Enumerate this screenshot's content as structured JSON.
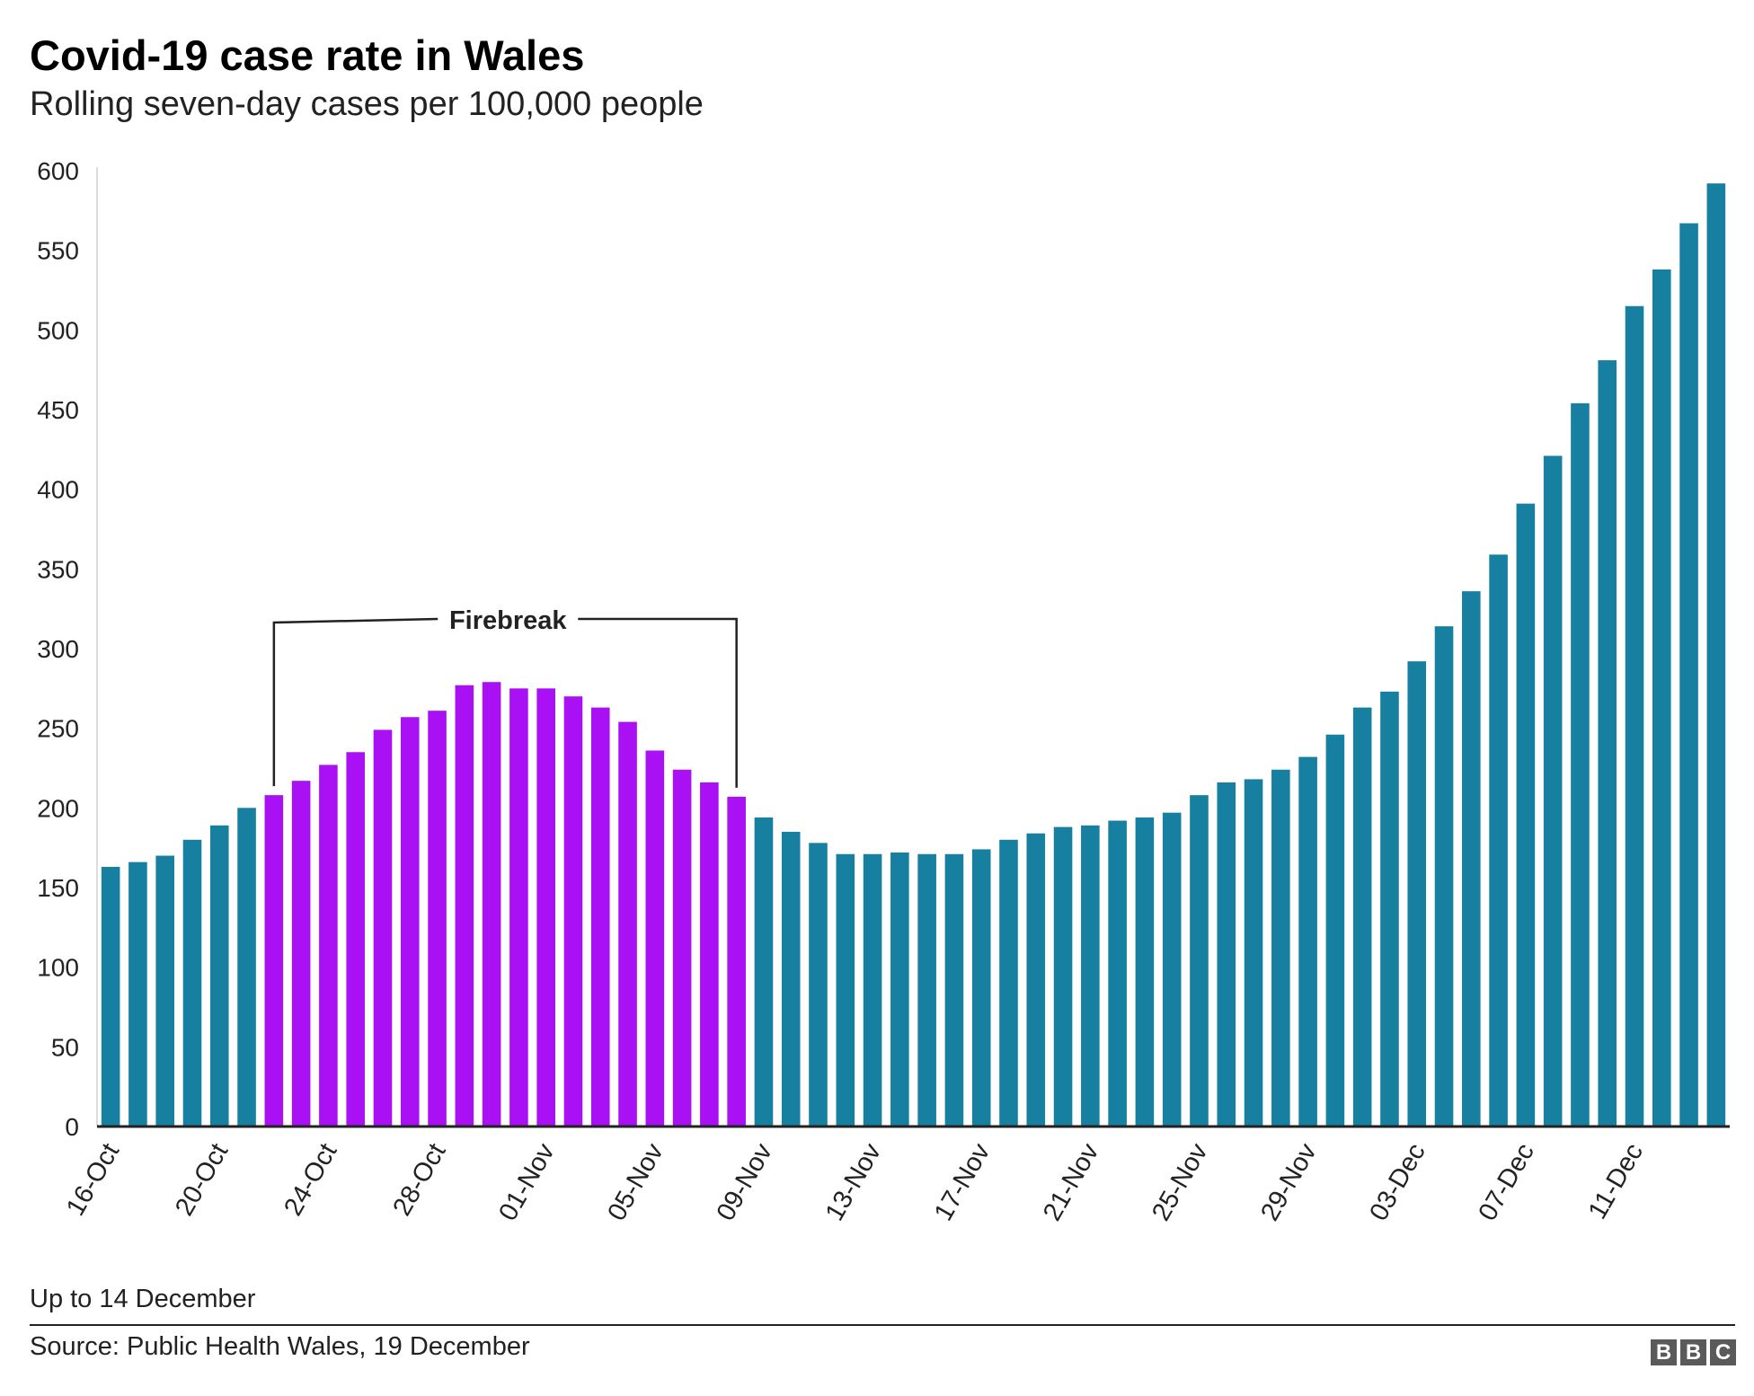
{
  "header": {
    "title": "Covid-19 case rate in Wales",
    "subtitle": "Rolling seven-day cases per 100,000 people"
  },
  "footer": {
    "note": "Up to 14 December",
    "source": "Source: Public Health Wales, 19 December",
    "logo_letters": [
      "B",
      "B",
      "C"
    ]
  },
  "colors": {
    "default_bar": "#1780a1",
    "highlight_bar": "#aa10f4",
    "axis": "#222222",
    "logo": "#5a5a5a"
  },
  "chart_data": {
    "type": "bar",
    "title": "Covid-19 case rate in Wales",
    "subtitle": "Rolling seven-day cases per 100,000 people",
    "xlabel": "",
    "ylabel": "",
    "ylim": [
      0,
      600
    ],
    "yticks": [
      0,
      50,
      100,
      150,
      200,
      250,
      300,
      350,
      400,
      450,
      500,
      550,
      600
    ],
    "grid": false,
    "categories": [
      "16-Oct",
      "17-Oct",
      "18-Oct",
      "19-Oct",
      "20-Oct",
      "21-Oct",
      "22-Oct",
      "23-Oct",
      "24-Oct",
      "25-Oct",
      "26-Oct",
      "27-Oct",
      "28-Oct",
      "29-Oct",
      "30-Oct",
      "31-Oct",
      "01-Nov",
      "02-Nov",
      "03-Nov",
      "04-Nov",
      "05-Nov",
      "06-Nov",
      "07-Nov",
      "08-Nov",
      "09-Nov",
      "10-Nov",
      "11-Nov",
      "12-Nov",
      "13-Nov",
      "14-Nov",
      "15-Nov",
      "16-Nov",
      "17-Nov",
      "18-Nov",
      "19-Nov",
      "20-Nov",
      "21-Nov",
      "22-Nov",
      "23-Nov",
      "24-Nov",
      "25-Nov",
      "26-Nov",
      "27-Nov",
      "28-Nov",
      "29-Nov",
      "30-Nov",
      "01-Dec",
      "02-Dec",
      "03-Dec",
      "04-Dec",
      "05-Dec",
      "06-Dec",
      "07-Dec",
      "08-Dec",
      "09-Dec",
      "10-Dec",
      "11-Dec",
      "12-Dec",
      "13-Dec",
      "14-Dec"
    ],
    "tick_labels": [
      "16-Oct",
      "20-Oct",
      "24-Oct",
      "28-Oct",
      "01-Nov",
      "05-Nov",
      "09-Nov",
      "13-Nov",
      "17-Nov",
      "21-Nov",
      "25-Nov",
      "29-Nov",
      "03-Dec",
      "07-Dec",
      "11-Dec"
    ],
    "values": [
      163,
      166,
      170,
      180,
      189,
      200,
      208,
      217,
      227,
      235,
      249,
      257,
      261,
      277,
      279,
      275,
      275,
      270,
      263,
      254,
      236,
      224,
      216,
      207,
      194,
      185,
      178,
      171,
      171,
      172,
      171,
      171,
      174,
      180,
      184,
      188,
      189,
      192,
      194,
      197,
      208,
      216,
      218,
      224,
      232,
      246,
      263,
      273,
      292,
      314,
      336,
      359,
      391,
      421,
      454,
      481,
      515,
      538,
      567,
      592
    ],
    "highlight": {
      "start": "22-Oct",
      "end": "08-Nov",
      "label": "Firebreak"
    }
  }
}
